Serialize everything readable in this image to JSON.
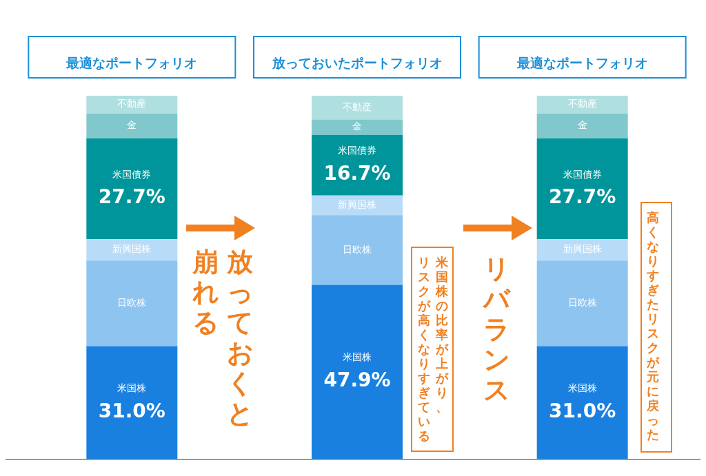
{
  "chart_data": {
    "type": "bar",
    "stacked": true,
    "categories": [
      "最適なポートフォリオ",
      "放っておいたポートフォリオ",
      "最適なポートフォリオ"
    ],
    "series": [
      {
        "name": "米国株",
        "color": "#1a80e0",
        "values": [
          31.0,
          47.9,
          31.0
        ],
        "value_labels": [
          "31.0%",
          "47.9%",
          "31.0%"
        ]
      },
      {
        "name": "日欧株",
        "color": "#8ec4f0",
        "values": [
          23.6,
          19.2,
          23.6
        ],
        "value_labels": [
          null,
          null,
          null
        ]
      },
      {
        "name": "新興国株",
        "color": "#b8dcf8",
        "values": [
          5.9,
          5.4,
          5.9
        ],
        "value_labels": [
          null,
          null,
          null
        ]
      },
      {
        "name": "米国債券",
        "color": "#00959a",
        "values": [
          27.7,
          16.7,
          27.7
        ],
        "value_labels": [
          "27.7%",
          "16.7%",
          "27.7%"
        ]
      },
      {
        "name": "金",
        "color": "#80c8cc",
        "values": [
          6.9,
          4.2,
          6.9
        ],
        "value_labels": [
          null,
          null,
          null
        ]
      },
      {
        "name": "不動産",
        "color": "#b0dfe0",
        "values": [
          4.9,
          6.6,
          4.9
        ],
        "value_labels": [
          null,
          null,
          null
        ]
      }
    ],
    "ylim": [
      0,
      100
    ],
    "tick_labels": "x",
    "grid": false,
    "legend": false,
    "annotations": [
      "放っておくと",
      "崩れる",
      "米国株の比率が上がり、",
      "リスクが高くなりすぎている",
      "リバランス",
      "高くなりすぎたリスクが元に戻った"
    ]
  }
}
